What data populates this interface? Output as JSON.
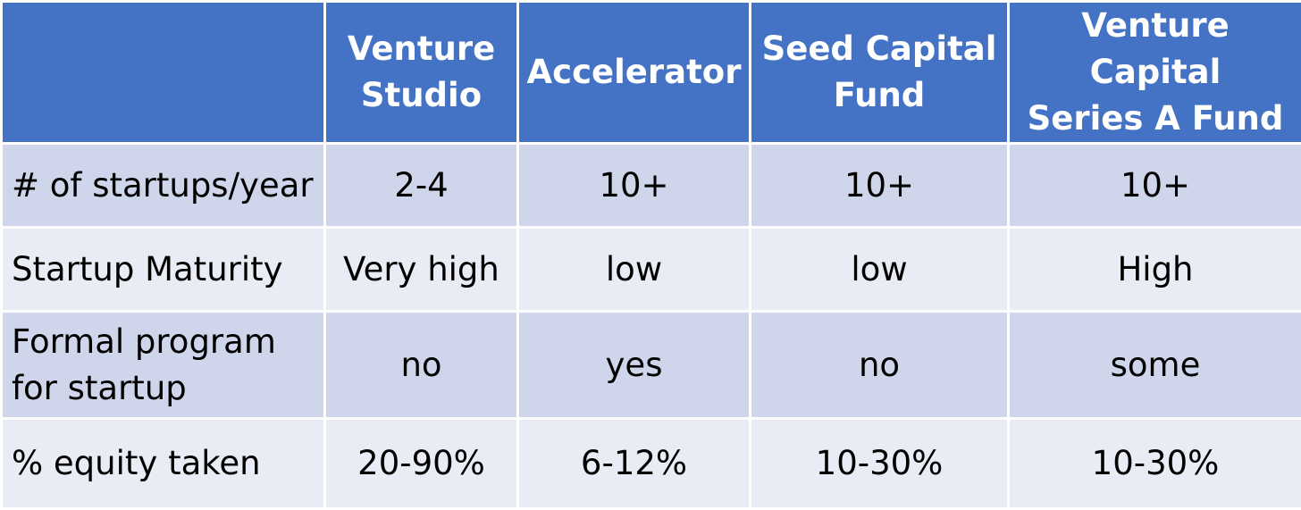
{
  "table": {
    "columns": [
      {
        "line1": "",
        "line2": ""
      },
      {
        "line1": "Venture",
        "line2": "Studio"
      },
      {
        "line1": "Accelerator",
        "line2": ""
      },
      {
        "line1": "Seed Capital",
        "line2": "Fund"
      },
      {
        "line1": "Venture Capital",
        "line2": "Series A Fund"
      }
    ],
    "rows": [
      {
        "label": [
          "# of startups/year"
        ],
        "values": [
          "2-4",
          "10+",
          "10+",
          "10+"
        ]
      },
      {
        "label": [
          "Startup Maturity"
        ],
        "values": [
          "Very high",
          "low",
          "low",
          "High"
        ]
      },
      {
        "label": [
          "Formal program",
          "for startup"
        ],
        "values": [
          "no",
          "yes",
          "no",
          "some"
        ]
      },
      {
        "label": [
          "% equity taken"
        ],
        "values": [
          "20-90%",
          "6-12%",
          "10-30%",
          "10-30%"
        ]
      }
    ],
    "colors": {
      "header_bg": "#4472c4",
      "header_text": "#ffffff",
      "row_odd_bg": "#cfd5ea",
      "row_even_bg": "#e9ebf5",
      "cell_text": "#000000",
      "border": "#ffffff"
    }
  }
}
